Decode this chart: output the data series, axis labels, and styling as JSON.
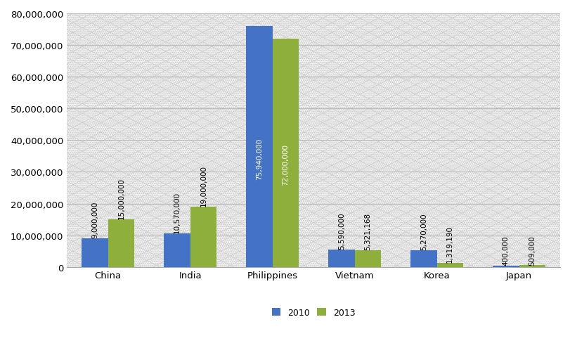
{
  "categories": [
    "China",
    "India",
    "Philippines",
    "Vietnam",
    "Korea",
    "Japan"
  ],
  "values_2010": [
    9000000,
    10570000,
    75940000,
    5590000,
    5270000,
    400000
  ],
  "values_2013": [
    15000000,
    19000000,
    72000000,
    5321168,
    1319190,
    509000
  ],
  "labels_2010": [
    "9,000,000",
    "10,570,000",
    "75,940,000",
    "5,590,000",
    "5,270,000",
    "400,000"
  ],
  "labels_2013": [
    "15,000,000",
    "19,000,000",
    "72,000,000",
    "5,321,168",
    "1,319,190",
    "509,000"
  ],
  "color_2010": "#4472C4",
  "color_2013": "#8FAF3C",
  "ylim": [
    0,
    80000000
  ],
  "yticks": [
    0,
    10000000,
    20000000,
    30000000,
    40000000,
    50000000,
    60000000,
    70000000,
    80000000
  ],
  "legend_labels": [
    "2010",
    "2013"
  ],
  "bar_width": 0.32,
  "background_color": "#FFFFFF",
  "hatch_color": "#CCCCCC",
  "label_fontsize": 7.5,
  "axis_fontsize": 9.5,
  "legend_fontsize": 9,
  "inside_label_threshold": 20000000
}
